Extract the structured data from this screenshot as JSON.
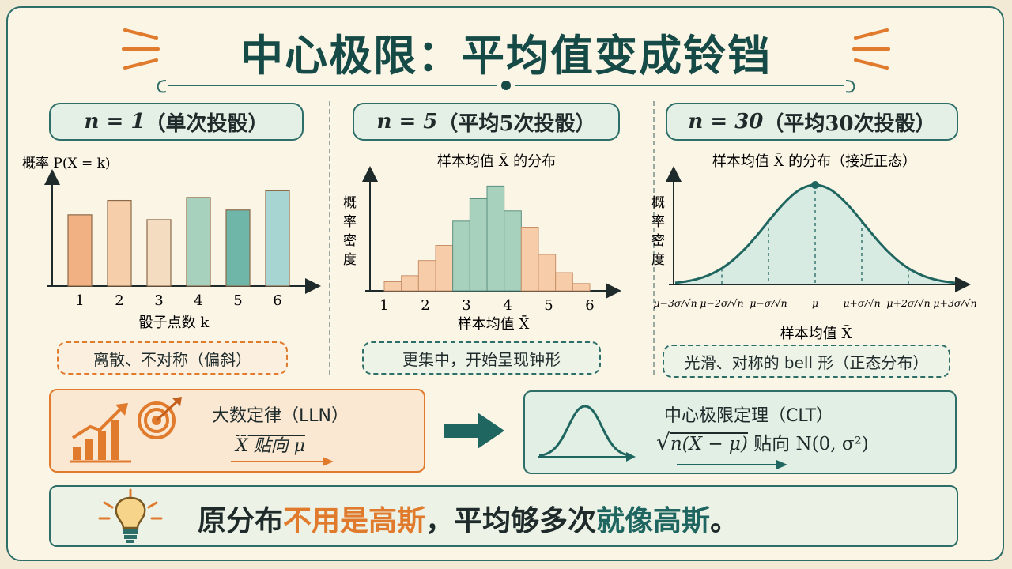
{
  "title": "中心极限：平均值变成铃铛",
  "panels": [
    {
      "pill_prefix": "n = 1",
      "pill_suffix": "（单次投骰）",
      "ylabel": "概率 P(X = k)",
      "xlabel": "骰子点数 k",
      "note": "离散、不对称（偏斜）"
    },
    {
      "pill_prefix": "n = 5",
      "pill_suffix": "（平均5次投骰）",
      "subtitle": "样本均值 X̄ 的分布",
      "ylabel": "概率密度",
      "xlabel": "样本均值 X̄",
      "note": "更集中，开始呈现钟形"
    },
    {
      "pill_prefix": "n = 30",
      "pill_suffix": "（平均30次投骰）",
      "subtitle": "样本均值 X̄ 的分布（接近正态）",
      "ylabel": "概率密度",
      "xlabel": "样本均值 X̄",
      "note": "光滑、对称的 bell 形（正态分布）"
    }
  ],
  "lln": {
    "title": "大数定律（LLN）",
    "formula": "X̄ 贴向 μ"
  },
  "clt": {
    "title": "中心极限定理（CLT）",
    "formula_tail": "贴向 N(0, σ²)"
  },
  "footer": {
    "part1": "原分布",
    "part2": "不用是高斯",
    "part3": "，平均够多次",
    "part4": "就像高斯",
    "part5": "。"
  },
  "colors": {
    "teal": "#2e6e68",
    "orange": "#e07a2c",
    "orange_fill": "#f2b183",
    "green_fill": "#a8d1bd"
  },
  "chart_data": [
    {
      "type": "bar",
      "categories": [
        "1",
        "2",
        "3",
        "4",
        "5",
        "6"
      ],
      "values": [
        0.148,
        0.178,
        0.138,
        0.184,
        0.158,
        0.198
      ],
      "colors": [
        "#f2b183",
        "#f6cfaa",
        "#f4dcc0",
        "#a8d1bd",
        "#6fb5a8",
        "#a7d5d2"
      ],
      "ylim": [
        0,
        0.22
      ],
      "ylabel": "概率 P(X = k)",
      "xlabel": "骰子点数 k"
    },
    {
      "type": "bar",
      "x_ticks": [
        "1",
        "2",
        "3",
        "4",
        "5",
        "6"
      ],
      "xlim": [
        1,
        6
      ],
      "bin_edges": [
        1.0,
        1.4167,
        1.8333,
        2.25,
        2.6667,
        3.0833,
        3.5,
        3.9167,
        4.3333,
        4.75,
        5.1667,
        5.5833,
        6.0
      ],
      "values": [
        1.5,
        2.5,
        5.0,
        7.5,
        11.5,
        15.2,
        17.3,
        13.2,
        10.5,
        6.0,
        3.0,
        1.2
      ],
      "ylim": [
        0,
        18
      ],
      "subtitle": "样本均值 X̄ 的分布",
      "ylabel": "概率密度",
      "xlabel": "样本均值 X̄"
    },
    {
      "type": "area",
      "curve": "normal",
      "x_ticks": [
        "μ−3σ/√n",
        "μ−2σ/√n",
        "μ−σ/√n",
        "μ",
        "μ+σ/√n",
        "μ+2σ/√n",
        "μ+3σ/√n"
      ],
      "xlim": [
        -3,
        3
      ],
      "subtitle": "样本均值 X̄ 的分布（接近正态）",
      "ylabel": "概率密度",
      "xlabel": "样本均值 X̄"
    }
  ]
}
